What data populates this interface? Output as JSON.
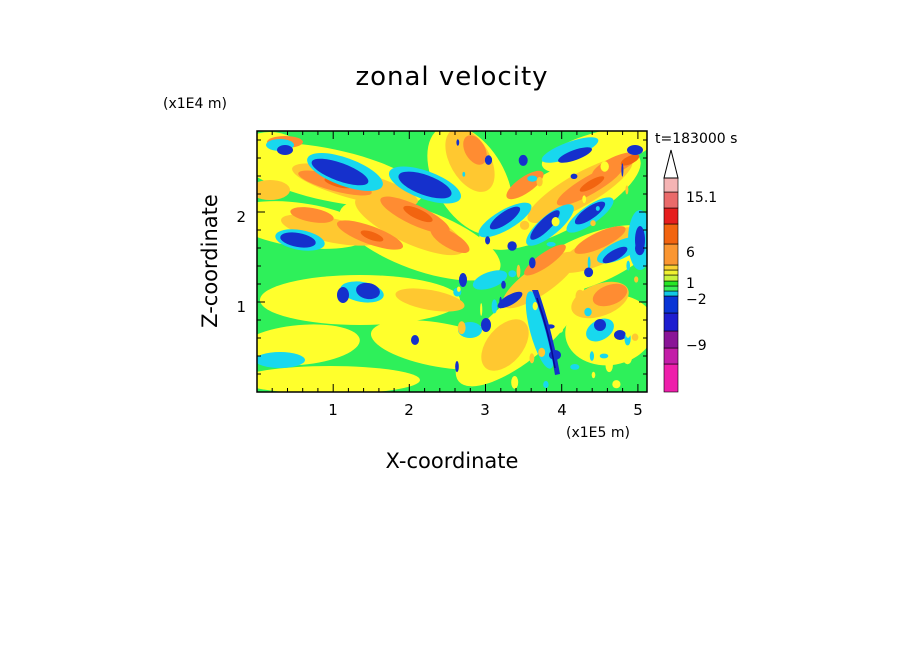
{
  "chart_data": {
    "type": "heatmap",
    "title": "zonal velocity",
    "xlabel": "X-coordinate",
    "ylabel": "Z-coordinate",
    "x_unit": "(x1E5 m)",
    "y_unit": "(x1E4 m)",
    "time_label": "t=183000 s",
    "x_ticks": [
      "1",
      "2",
      "3",
      "4",
      "5"
    ],
    "y_ticks": [
      "1",
      "2"
    ],
    "xlim": [
      0,
      5.12
    ],
    "ylim": [
      0,
      2.9
    ],
    "colorbar": {
      "labels": [
        "15.1",
        "6",
        "1",
        "−2",
        "−9"
      ],
      "colors": [
        "#ee1fab",
        "#c31ea8",
        "#8a1597",
        "#1e1ed0",
        "#0a35d6",
        "#12c8e6",
        "#3cf05a",
        "#26e626",
        "#c8f23c",
        "#f0f030",
        "#fad232",
        "#fa9632",
        "#f26410",
        "#e61e1e",
        "#ea6a6a",
        "#f5b4b4"
      ]
    },
    "field_colors": {
      "green": "#2ef05a",
      "yellow": "#ffff2c",
      "gold": "#ffc830",
      "orange": "#ff8c32",
      "red_orange": "#f26410",
      "cyan": "#18d8ee",
      "blue": "#1530cc",
      "dark_blue": "#0a0a8c"
    }
  }
}
